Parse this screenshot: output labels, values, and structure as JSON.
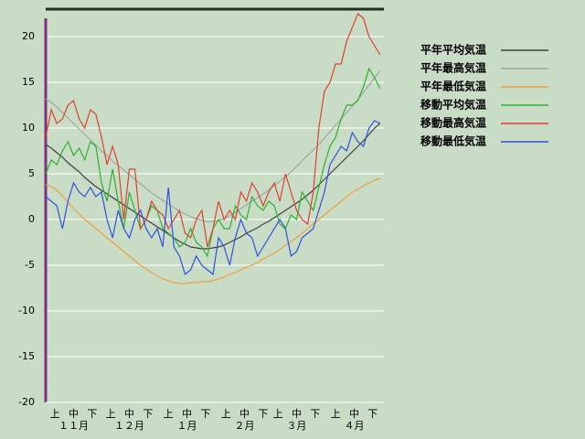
{
  "chart_data": {
    "type": "line",
    "x": [
      0,
      3,
      6,
      9,
      12,
      15,
      18,
      21,
      24,
      27,
      30,
      33,
      36,
      39,
      42,
      45,
      48,
      51,
      54,
      57,
      60,
      63,
      66,
      69,
      72,
      75,
      78,
      81,
      84,
      87,
      90,
      93,
      96,
      99,
      102,
      105,
      108,
      111,
      114,
      117,
      120,
      123,
      126,
      129,
      132,
      135,
      138,
      141,
      144,
      147,
      150,
      153,
      156,
      159,
      162,
      165,
      168,
      171,
      174,
      177,
      180
    ],
    "xlim": [
      0,
      182
    ],
    "xticks": [
      {
        "value": 5,
        "label": "上"
      },
      {
        "value": 15,
        "label": "中"
      },
      {
        "value": 25,
        "label": "下"
      },
      {
        "value": 35,
        "label": "上"
      },
      {
        "value": 45,
        "label": "中"
      },
      {
        "value": 55,
        "label": "下"
      },
      {
        "value": 66,
        "label": "上"
      },
      {
        "value": 76,
        "label": "中"
      },
      {
        "value": 86,
        "label": "下"
      },
      {
        "value": 97,
        "label": "上"
      },
      {
        "value": 107,
        "label": "中"
      },
      {
        "value": 117,
        "label": "下"
      },
      {
        "value": 125,
        "label": "上"
      },
      {
        "value": 135,
        "label": "中"
      },
      {
        "value": 145,
        "label": "下"
      },
      {
        "value": 156,
        "label": "上"
      },
      {
        "value": 166,
        "label": "中"
      },
      {
        "value": 176,
        "label": "下"
      }
    ],
    "month_labels": [
      {
        "value": 15,
        "label": "１１月"
      },
      {
        "value": 45,
        "label": "１２月"
      },
      {
        "value": 76,
        "label": "１月"
      },
      {
        "value": 107,
        "label": "２月"
      },
      {
        "value": 135,
        "label": "３月"
      },
      {
        "value": 166,
        "label": "４月"
      }
    ],
    "ylim": [
      -20,
      23
    ],
    "yticks": [
      -20,
      -15,
      -10,
      -5,
      0,
      5,
      10,
      15,
      20
    ],
    "grid": true,
    "legend": "right",
    "series": [
      {
        "name": "平年平均気温",
        "color": "#404040",
        "values": [
          8.2,
          7.8,
          7.3,
          6.8,
          6.2,
          5.7,
          5.2,
          4.6,
          4.1,
          3.6,
          3.2,
          2.8,
          2.4,
          2.0,
          1.6,
          1.2,
          0.8,
          0.4,
          0,
          -0.4,
          -0.8,
          -1.2,
          -1.6,
          -2,
          -2.4,
          -2.7,
          -3,
          -3.1,
          -3.2,
          -3.2,
          -3.1,
          -3,
          -2.8,
          -2.5,
          -2.2,
          -1.9,
          -1.5,
          -1.2,
          -0.9,
          -0.5,
          -0.2,
          0.2,
          0.6,
          1,
          1.4,
          1.8,
          2.2,
          2.7,
          3.2,
          3.8,
          4.4,
          5,
          5.6,
          6.2,
          6.8,
          7.4,
          8,
          8.6,
          9.3,
          10,
          10.5
        ]
      },
      {
        "name": "平年最高気温",
        "color": "#a0a8a0",
        "values": [
          13.2,
          12.8,
          12.3,
          11.7,
          11.1,
          10.5,
          9.9,
          9.3,
          8.7,
          8.1,
          7.5,
          7.0,
          6.4,
          5.9,
          5.4,
          4.9,
          4.4,
          3.9,
          3.4,
          2.9,
          2.5,
          2.1,
          1.7,
          1.3,
          0.9,
          0.6,
          0.3,
          0.1,
          -0.1,
          -0.2,
          -0.2,
          -0.1,
          0.1,
          0.4,
          0.8,
          1.2,
          1.6,
          2.0,
          2.4,
          2.8,
          3.2,
          3.7,
          4.2,
          4.7,
          5.2,
          5.8,
          6.4,
          7.0,
          7.6,
          8.2,
          8.9,
          9.6,
          10.3,
          11.0,
          11.7,
          12.4,
          13.1,
          13.9,
          14.7,
          15.5,
          16.3
        ]
      },
      {
        "name": "平年最低気温",
        "color": "#f0a040",
        "values": [
          3.8,
          3.6,
          3.2,
          2.6,
          1.9,
          1.2,
          0.6,
          0,
          -0.5,
          -1,
          -1.5,
          -2,
          -2.5,
          -3,
          -3.5,
          -4,
          -4.5,
          -5,
          -5.4,
          -5.8,
          -6.2,
          -6.5,
          -6.7,
          -6.9,
          -7,
          -7,
          -6.9,
          -6.9,
          -6.8,
          -6.8,
          -6.7,
          -6.5,
          -6.3,
          -6,
          -5.8,
          -5.5,
          -5.2,
          -5,
          -4.7,
          -4.3,
          -4,
          -3.7,
          -3.3,
          -2.8,
          -2.4,
          -2,
          -1.5,
          -1,
          -0.5,
          0,
          0.5,
          1,
          1.5,
          2,
          2.5,
          3,
          3.3,
          3.7,
          4,
          4.3,
          4.5
        ]
      },
      {
        "name": "移動平均気温",
        "color": "#30b030",
        "values": [
          5,
          6.5,
          6,
          7.5,
          8.5,
          7,
          7.8,
          6.5,
          8.5,
          8,
          4,
          2,
          5.5,
          2,
          -1,
          3,
          1,
          -1,
          0,
          1.5,
          1,
          -1,
          -1.5,
          -2,
          -3,
          -2.5,
          -1,
          -2.5,
          -3,
          -4,
          -1,
          0,
          -1,
          -1,
          1.5,
          0.5,
          0,
          2.5,
          1.5,
          1,
          2,
          1.5,
          -0.5,
          -1,
          0.5,
          0,
          3,
          2,
          1,
          3.5,
          6,
          8,
          9,
          11,
          12.5,
          12.5,
          13,
          14.5,
          16.5,
          15.5,
          14.3
        ]
      },
      {
        "name": "移動最高気温",
        "color": "#e04030",
        "values": [
          9,
          12,
          10.5,
          11,
          12.5,
          13,
          11,
          10,
          12,
          11.5,
          9,
          6,
          8,
          6,
          0,
          5.5,
          5.5,
          -1,
          0,
          2,
          1,
          0.5,
          -1,
          0,
          1,
          -1.5,
          -2,
          0,
          1,
          -3,
          -1,
          2,
          0,
          1,
          0,
          3,
          2,
          4,
          3,
          1.5,
          3,
          4,
          2,
          5,
          3,
          1,
          0,
          -0.5,
          3,
          10,
          14,
          15,
          17,
          17,
          19.5,
          21,
          22.5,
          22,
          20,
          19,
          18
        ]
      },
      {
        "name": "移動最低気温",
        "color": "#3050e0",
        "values": [
          2.5,
          2,
          1.5,
          -1,
          2,
          4,
          3,
          2.5,
          3.5,
          2.5,
          3,
          0,
          -2,
          1,
          -1,
          -2,
          0,
          1,
          -1,
          -2,
          -1,
          -3,
          3.5,
          -3,
          -4,
          -6,
          -5.5,
          -4,
          -5,
          -5.5,
          -6,
          -2,
          -3,
          -5,
          -2,
          0,
          -1.5,
          -2,
          -4,
          -3,
          -2,
          -1,
          0,
          -1,
          -4,
          -3.5,
          -2,
          -1.5,
          -1,
          1,
          3,
          6,
          7,
          8,
          7.5,
          9.5,
          8.5,
          8,
          10,
          10.8,
          10.5
        ]
      }
    ]
  }
}
